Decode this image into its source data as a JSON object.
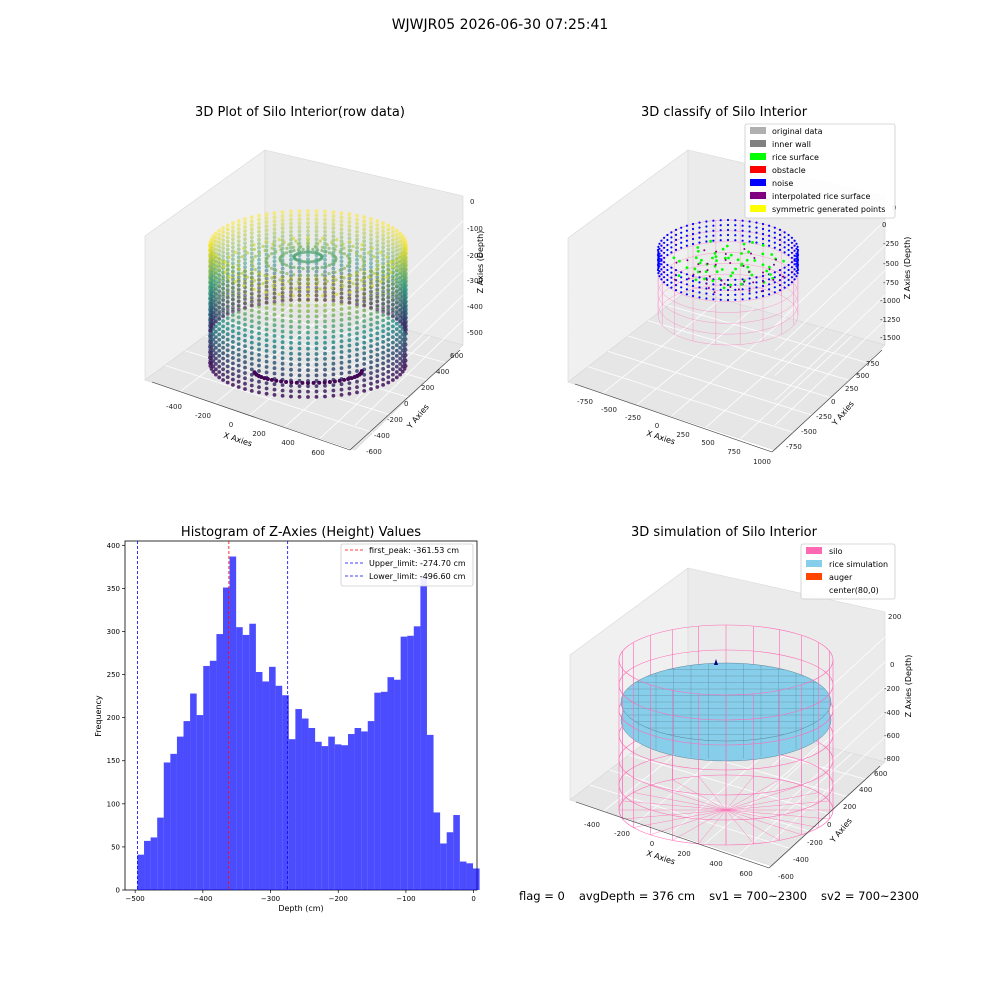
{
  "figure": {
    "suptitle": "WJWJR05 2026-06-30 07:25:41",
    "status": {
      "flag": "flag = 0",
      "avg_depth": "avgDepth = 376 cm",
      "sv1": "sv1 = 700~2300",
      "sv2": "sv2 = 700~2300"
    }
  },
  "colors": {
    "histogram_bar": "#0000ff",
    "first_peak_line": "#ff0000",
    "limit_line": "#0000ff",
    "silo_wire": "#ff69b4",
    "rice_sim": "#87ceeb",
    "viridis_low": "#440154",
    "viridis_mid": "#21918c",
    "viridis_high": "#fde725"
  },
  "chart_data": [
    {
      "type": "scatter",
      "projection": "3d",
      "title": "3D Plot of Silo Interior(row data)",
      "xlabel": "X Axies",
      "ylabel": "Y Axies",
      "zlabel": "Z Axies (Depth)",
      "x_ticks": [
        "-400",
        "-200",
        "0",
        "200",
        "400",
        "600"
      ],
      "y_ticks": [
        "-600",
        "-400",
        "-200",
        "0",
        "200",
        "400",
        "600"
      ],
      "z_ticks": [
        "0",
        "-100",
        "-200",
        "-300",
        "-400",
        "-500"
      ],
      "colormap": "viridis"
    },
    {
      "type": "scatter",
      "projection": "3d",
      "title": "3D classify of Silo Interior",
      "xlabel": "X Axies",
      "ylabel": "Y Axies",
      "zlabel": "Z Axies (Depth)",
      "x_ticks": [
        "-750",
        "-500",
        "-250",
        "0",
        "250",
        "500",
        "750",
        "1000"
      ],
      "y_ticks": [
        "-750",
        "-500",
        "-250",
        "0",
        "250",
        "500",
        "750"
      ],
      "z_ticks": [
        "0",
        "-250",
        "-500",
        "-750",
        "-1000",
        "-1250",
        "-1500"
      ],
      "legend": [
        {
          "label": "original data",
          "color": "#b0b0b0"
        },
        {
          "label": "inner wall",
          "color": "#808080"
        },
        {
          "label": "rice surface",
          "color": "#00ff00"
        },
        {
          "label": "obstacle",
          "color": "#ff0000"
        },
        {
          "label": "noise",
          "color": "#0000ff"
        },
        {
          "label": "interpolated rice surface",
          "color": "#800080"
        },
        {
          "label": "symmetric generated points",
          "color": "#ffff00"
        }
      ]
    },
    {
      "type": "bar",
      "title": "Histogram of Z-Axies (Height) Values",
      "xlabel": "Depth (cm)",
      "ylabel": "Frequency",
      "xlim": [
        -515,
        5
      ],
      "ylim": [
        0,
        405
      ],
      "x_ticks": [
        -500,
        -400,
        -300,
        -200,
        -100,
        0
      ],
      "y_ticks": [
        0,
        50,
        100,
        150,
        200,
        250,
        300,
        350,
        400
      ],
      "bins_start": -496.6,
      "bin_width": 9.72,
      "values": [
        41,
        57,
        61,
        84,
        148,
        158,
        178,
        196,
        228,
        203,
        260,
        266,
        297,
        351,
        387,
        305,
        296,
        309,
        253,
        242,
        259,
        237,
        226,
        175,
        210,
        199,
        188,
        172,
        167,
        178,
        169,
        168,
        181,
        188,
        184,
        196,
        229,
        230,
        247,
        244,
        294,
        295,
        306,
        363,
        180,
        90,
        54,
        67,
        87,
        33,
        31,
        25
      ],
      "vlines": [
        {
          "label": "first_peak: -361.53 cm",
          "x": -361.53,
          "color": "#ff0000"
        },
        {
          "label": "Upper_limit: -274.70 cm",
          "x": -274.7,
          "color": "#0000ff"
        },
        {
          "label": "Lower_limit: -496.60 cm",
          "x": -496.6,
          "color": "#0000ff"
        }
      ]
    },
    {
      "type": "surface",
      "projection": "3d",
      "title": "3D simulation of Silo Interior",
      "xlabel": "X Axies",
      "ylabel": "Y Axies",
      "zlabel": "Z Axies (Depth)",
      "x_ticks": [
        "-400",
        "-200",
        "0",
        "200",
        "400",
        "600"
      ],
      "y_ticks": [
        "-600",
        "-400",
        "-200",
        "0",
        "200",
        "400",
        "600"
      ],
      "z_ticks": [
        "200",
        "0",
        "-200",
        "-400",
        "-600",
        "-800"
      ],
      "legend": [
        {
          "label": "silo",
          "color": "#ff69b4"
        },
        {
          "label": "rice simulation",
          "color": "#87ceeb"
        },
        {
          "label": "auger",
          "color": "#ff4500"
        },
        {
          "label": "center(80,0)",
          "color": ""
        }
      ]
    }
  ]
}
